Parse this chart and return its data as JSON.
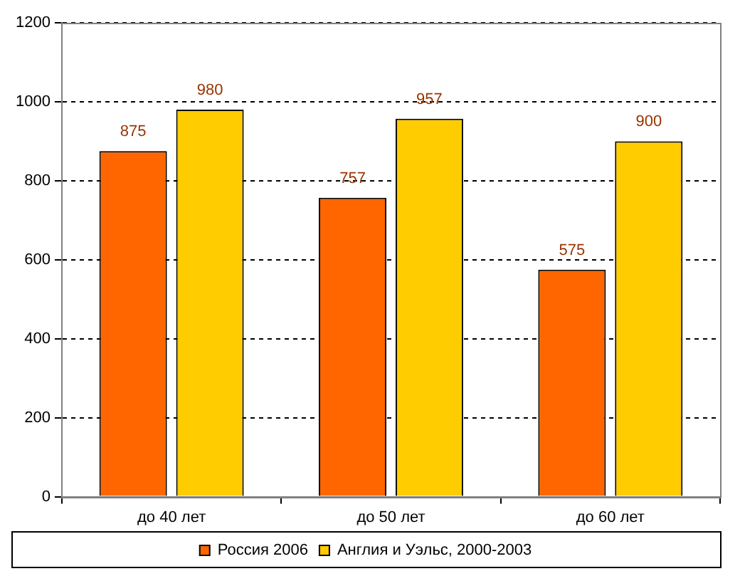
{
  "chart_data": {
    "type": "bar",
    "categories": [
      "до 40 лет",
      "до 50 лет",
      "до 60 лет"
    ],
    "series": [
      {
        "name": "Россия 2006",
        "color": "#ff6600",
        "values": [
          875,
          757,
          575
        ]
      },
      {
        "name": "Англия и Уэльс, 2000-2003",
        "color": "#ffcc00",
        "values": [
          980,
          957,
          900
        ]
      }
    ],
    "ylim": [
      0,
      1200
    ],
    "yticks": [
      0,
      200,
      400,
      600,
      800,
      1000,
      1200
    ],
    "grid": "y",
    "legend": "bottom",
    "data_labels": true
  }
}
